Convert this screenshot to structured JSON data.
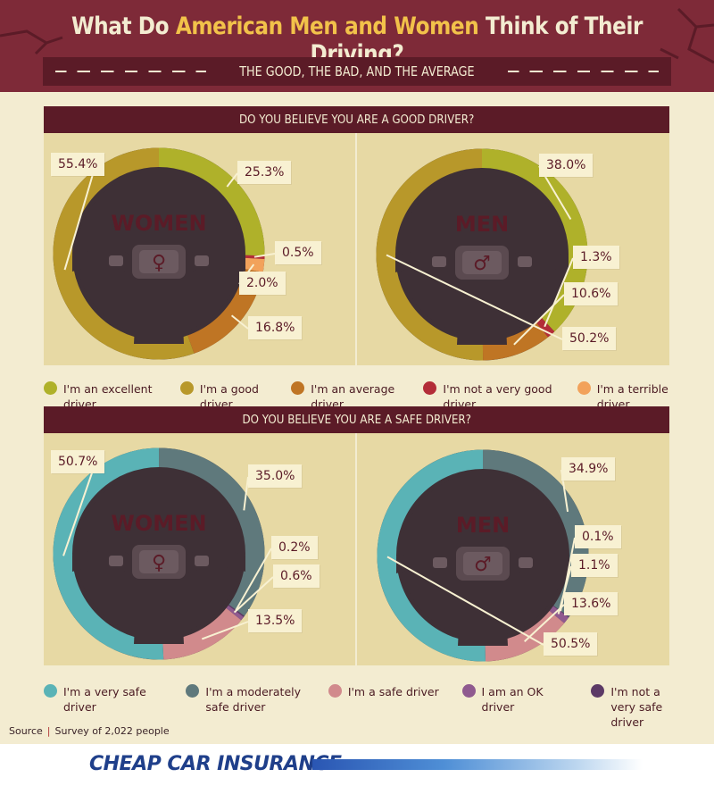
{
  "header": {
    "title_pre": "What Do ",
    "title_highlight": "American Men and Women",
    "title_post": " Think of Their Driving?",
    "subtitle": "THE GOOD, THE BAD, AND THE AVERAGE"
  },
  "colors": {
    "maroon": "#7e2a38",
    "dark_maroon": "#5b1b27",
    "excellent": "#afb12a",
    "good": "#b8982a",
    "average": "#bf7524",
    "not_very_good": "#b32d38",
    "terrible": "#f2a25b",
    "very_safe": "#5ab3b6",
    "moderately_safe": "#5f797c",
    "safe": "#d18a8c",
    "ok": "#8f5a8f",
    "not_very_safe": "#5c3a66"
  },
  "sections": [
    {
      "question": "DO YOU BELIEVE YOU ARE A GOOD DRIVER?",
      "legend": [
        {
          "label": "I'm an excellent driver",
          "color": "#afb12a"
        },
        {
          "label": "I'm a good driver",
          "color": "#b8982a"
        },
        {
          "label": "I'm an average driver",
          "color": "#bf7524"
        },
        {
          "label": "I'm not a very good driver",
          "color": "#b32d38"
        },
        {
          "label": "I'm a terrible driver",
          "color": "#f2a25b"
        }
      ]
    },
    {
      "question": "DO YOU BELIEVE YOU ARE A SAFE DRIVER?",
      "legend": [
        {
          "label": "I'm a very safe driver",
          "color": "#5ab3b6"
        },
        {
          "label": "I'm a moderately safe driver",
          "color": "#5f797c"
        },
        {
          "label": "I'm a safe driver",
          "color": "#d18a8c"
        },
        {
          "label": "I am an OK driver",
          "color": "#8f5a8f"
        },
        {
          "label": "I'm not a very safe driver",
          "color": "#5c3a66"
        }
      ]
    }
  ],
  "chart_data": [
    {
      "type": "pie",
      "title": "DO YOU BELIEVE YOU ARE A GOOD DRIVER? - WOMEN",
      "group": "WOMEN",
      "symbol": "♀",
      "categories": [
        "I'm an excellent driver",
        "I'm not a very good driver",
        "I'm a terrible driver",
        "I'm an average driver",
        "I'm a good driver"
      ],
      "values": [
        25.3,
        0.5,
        2.0,
        16.8,
        55.4
      ],
      "labels": [
        "25.3%",
        "0.5%",
        "2.0%",
        "16.8%",
        "55.4%"
      ],
      "colors": [
        "#afb12a",
        "#b32d38",
        "#f2a25b",
        "#bf7524",
        "#b8982a"
      ]
    },
    {
      "type": "pie",
      "title": "DO YOU BELIEVE YOU ARE A GOOD DRIVER? - MEN",
      "group": "MEN",
      "symbol": "♂",
      "categories": [
        "I'm an excellent driver",
        "I'm not a very good driver",
        "I'm an average driver",
        "I'm a good driver"
      ],
      "values": [
        38.0,
        1.3,
        10.6,
        50.2
      ],
      "labels": [
        "38.0%",
        "1.3%",
        "10.6%",
        "50.2%"
      ],
      "colors": [
        "#afb12a",
        "#b32d38",
        "#bf7524",
        "#b8982a"
      ]
    },
    {
      "type": "pie",
      "title": "DO YOU BELIEVE YOU ARE A SAFE DRIVER? - WOMEN",
      "group": "WOMEN",
      "symbol": "♀",
      "categories": [
        "I'm a moderately safe driver",
        "I'm not a very safe driver",
        "I am an OK driver",
        "I'm a safe driver",
        "I'm a very safe driver"
      ],
      "values": [
        35.0,
        0.2,
        0.6,
        13.5,
        50.7
      ],
      "labels": [
        "35.0%",
        "0.2%",
        "0.6%",
        "13.5%",
        "50.7%"
      ],
      "colors": [
        "#5f797c",
        "#5c3a66",
        "#8f5a8f",
        "#d18a8c",
        "#5ab3b6"
      ]
    },
    {
      "type": "pie",
      "title": "DO YOU BELIEVE YOU ARE A SAFE DRIVER? - MEN",
      "group": "MEN",
      "symbol": "♂",
      "categories": [
        "I'm a moderately safe driver",
        "I'm not a very safe driver",
        "I am an OK driver",
        "I'm a safe driver",
        "I'm a very safe driver"
      ],
      "values": [
        34.9,
        0.1,
        1.1,
        13.6,
        50.5
      ],
      "labels": [
        "34.9%",
        "0.1%",
        "1.1%",
        "13.6%",
        "50.5%"
      ],
      "colors": [
        "#5f797c",
        "#5c3a66",
        "#8f5a8f",
        "#d18a8c",
        "#5ab3b6"
      ]
    }
  ],
  "source": {
    "label": "Source",
    "text": "Survey of 2,022 people"
  },
  "brand": "CHEAP CAR INSURANCE"
}
